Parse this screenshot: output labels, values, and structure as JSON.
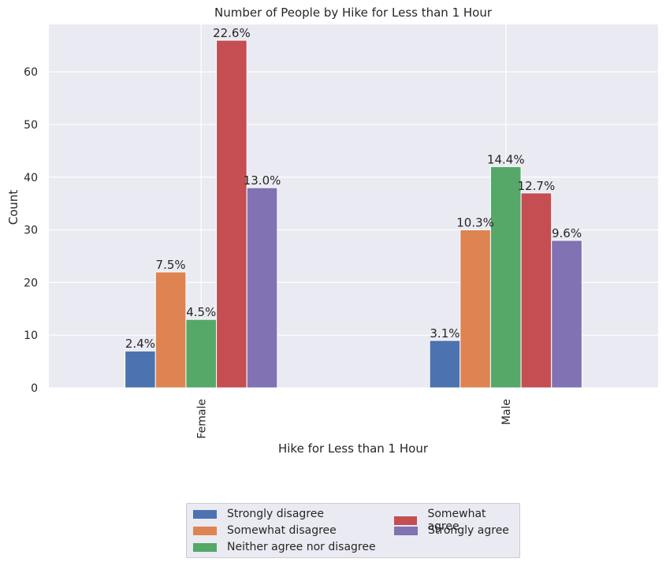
{
  "chart_data": {
    "type": "bar",
    "title": "Number of People by Hike for Less than 1 Hour",
    "xlabel": "Hike for Less than 1 Hour",
    "ylabel": "Count",
    "categories": [
      "Female",
      "Male"
    ],
    "ylim": [
      0,
      69
    ],
    "yticks": [
      0,
      10,
      20,
      30,
      40,
      50,
      60
    ],
    "grid": true,
    "legend_position": "bottom-center",
    "series": [
      {
        "name": "Strongly disagree",
        "color": "#4c72b0",
        "values": [
          7,
          9
        ],
        "labels": [
          "2.4%",
          "3.1%"
        ]
      },
      {
        "name": "Somewhat disagree",
        "color": "#dd8452",
        "values": [
          22,
          30
        ],
        "labels": [
          "7.5%",
          "10.3%"
        ]
      },
      {
        "name": "Neither agree nor disagree",
        "color": "#55a868",
        "values": [
          13,
          42
        ],
        "labels": [
          "4.5%",
          "14.4%"
        ]
      },
      {
        "name": "Somewhat agree",
        "color": "#c44e52",
        "values": [
          66,
          37
        ],
        "labels": [
          "22.6%",
          "12.7%"
        ]
      },
      {
        "name": "Strongly agree",
        "color": "#8172b3",
        "values": [
          38,
          28
        ],
        "labels": [
          "13.0%",
          "9.6%"
        ]
      }
    ]
  }
}
